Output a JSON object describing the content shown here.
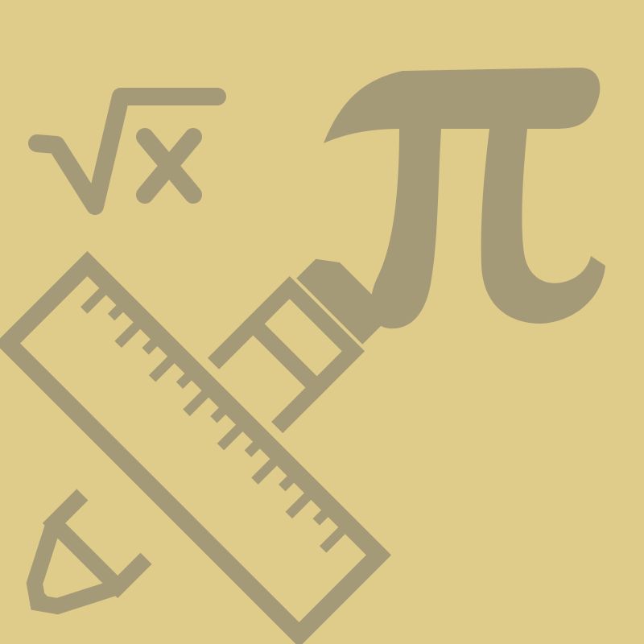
{
  "image": {
    "background_color": "#DFCC8A",
    "icon_color": "#A59A78",
    "icons": [
      "square-root-x-icon",
      "pi-icon",
      "ruler-icon",
      "pencil-icon"
    ]
  }
}
